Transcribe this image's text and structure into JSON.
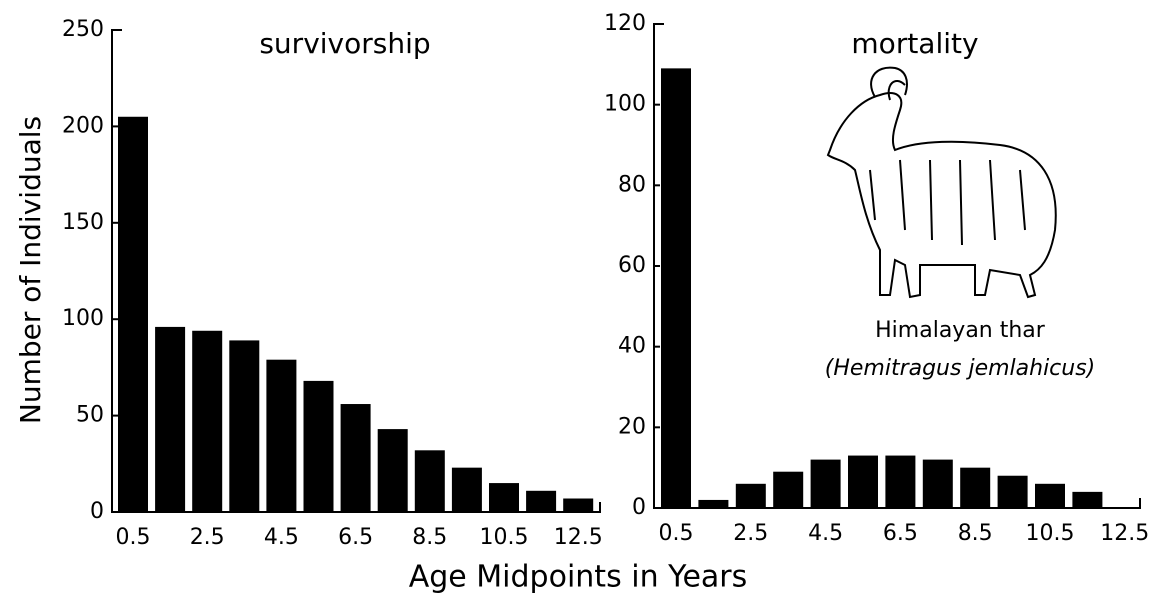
{
  "chart_data": [
    {
      "type": "bar",
      "title": "survivorship",
      "ylabel": "Number of Individuals",
      "xlabel": "Age Midpoints in Years",
      "categories": [
        "0.5",
        null,
        "2.5",
        null,
        "4.5",
        null,
        "6.5",
        null,
        "8.5",
        null,
        "10.5",
        null,
        "12.5"
      ],
      "values": [
        205,
        96,
        94,
        89,
        79,
        68,
        56,
        43,
        32,
        23,
        15,
        11,
        7
      ],
      "color": "#000000",
      "ylim": [
        0,
        250
      ],
      "yticks": [
        0,
        50,
        100,
        150,
        200,
        250
      ],
      "grid": false
    },
    {
      "type": "bar",
      "title": "mortality",
      "categories": [
        "0.5",
        null,
        "2.5",
        null,
        "4.5",
        null,
        "6.5",
        null,
        "8.5",
        null,
        "10.5",
        null,
        "12.5"
      ],
      "values": [
        109,
        2,
        6,
        9,
        12,
        13,
        13,
        12,
        10,
        8,
        6,
        4,
        null
      ],
      "color": "#000000",
      "ylim": [
        0,
        120
      ],
      "yticks": [
        0,
        20,
        40,
        60,
        80,
        100,
        120
      ],
      "grid": false,
      "annotation": "Himalayan thar",
      "annotation_species": "(Hemitragus jemlahicus)"
    }
  ]
}
